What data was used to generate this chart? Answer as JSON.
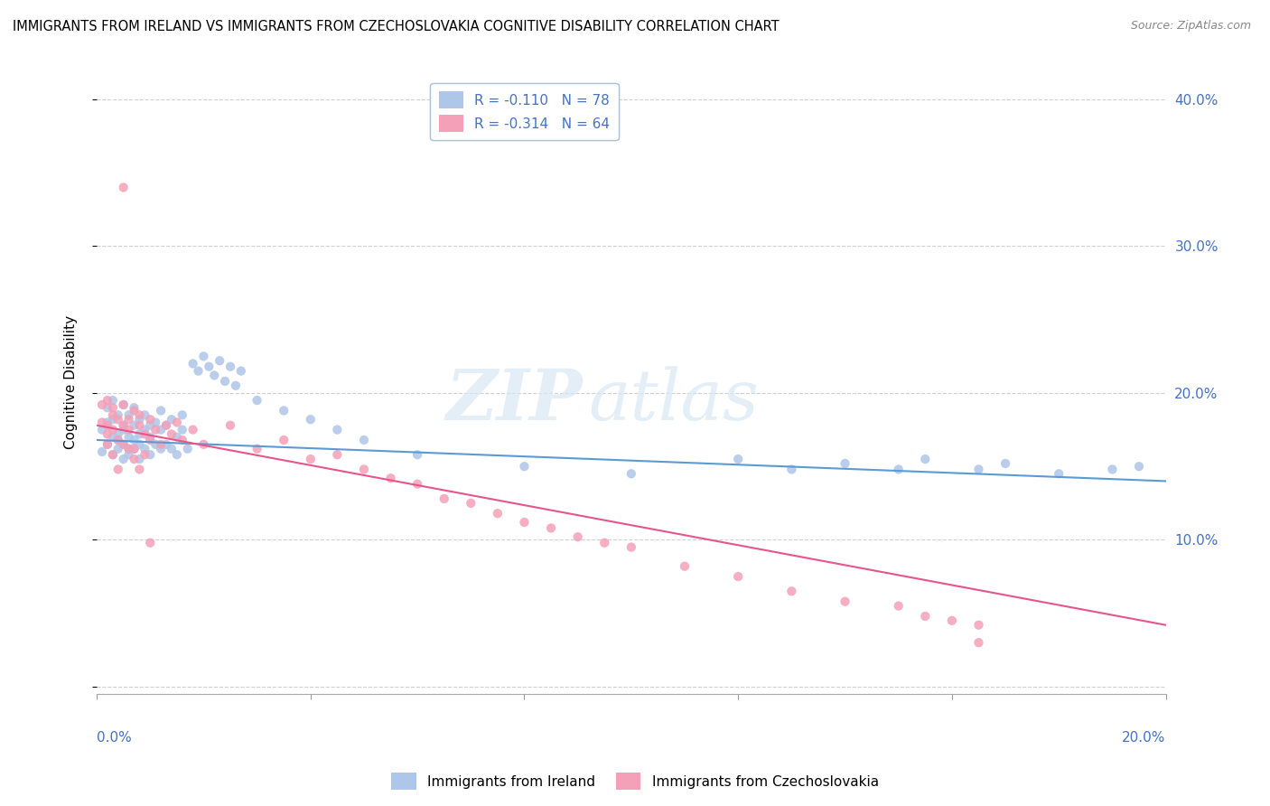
{
  "title": "IMMIGRANTS FROM IRELAND VS IMMIGRANTS FROM CZECHOSLOVAKIA COGNITIVE DISABILITY CORRELATION CHART",
  "source": "Source: ZipAtlas.com",
  "ylabel": "Cognitive Disability",
  "watermark_zip": "ZIP",
  "watermark_atlas": "atlas",
  "legend1_label": "R = -0.110   N = 78",
  "legend2_label": "R = -0.314   N = 64",
  "legend_bottom1": "Immigrants from Ireland",
  "legend_bottom2": "Immigrants from Czechoslovakia",
  "color_ireland": "#aec6e8",
  "color_czecho": "#f4a0b8",
  "color_ireland_line": "#5b9bd5",
  "color_czecho_line": "#e8558a",
  "color_axis_text": "#4472c4",
  "xlim": [
    0.0,
    0.2
  ],
  "ylim": [
    -0.005,
    0.42
  ],
  "ireland_scatter_x": [
    0.001,
    0.001,
    0.002,
    0.002,
    0.002,
    0.003,
    0.003,
    0.003,
    0.003,
    0.004,
    0.004,
    0.004,
    0.004,
    0.005,
    0.005,
    0.005,
    0.005,
    0.005,
    0.006,
    0.006,
    0.006,
    0.006,
    0.007,
    0.007,
    0.007,
    0.007,
    0.008,
    0.008,
    0.008,
    0.008,
    0.009,
    0.009,
    0.009,
    0.01,
    0.01,
    0.01,
    0.011,
    0.011,
    0.012,
    0.012,
    0.012,
    0.013,
    0.013,
    0.014,
    0.014,
    0.015,
    0.015,
    0.016,
    0.016,
    0.017,
    0.018,
    0.019,
    0.02,
    0.021,
    0.022,
    0.023,
    0.024,
    0.025,
    0.026,
    0.027,
    0.03,
    0.035,
    0.04,
    0.045,
    0.05,
    0.06,
    0.08,
    0.1,
    0.12,
    0.13,
    0.14,
    0.15,
    0.155,
    0.165,
    0.17,
    0.18,
    0.19,
    0.195
  ],
  "ireland_scatter_y": [
    0.175,
    0.16,
    0.19,
    0.165,
    0.18,
    0.17,
    0.158,
    0.182,
    0.195,
    0.162,
    0.172,
    0.185,
    0.168,
    0.178,
    0.155,
    0.192,
    0.165,
    0.175,
    0.162,
    0.17,
    0.185,
    0.158,
    0.168,
    0.178,
    0.162,
    0.19,
    0.155,
    0.172,
    0.182,
    0.165,
    0.175,
    0.162,
    0.185,
    0.17,
    0.158,
    0.178,
    0.165,
    0.18,
    0.162,
    0.175,
    0.188,
    0.165,
    0.178,
    0.162,
    0.182,
    0.17,
    0.158,
    0.175,
    0.185,
    0.162,
    0.22,
    0.215,
    0.225,
    0.218,
    0.212,
    0.222,
    0.208,
    0.218,
    0.205,
    0.215,
    0.195,
    0.188,
    0.182,
    0.175,
    0.168,
    0.158,
    0.15,
    0.145,
    0.155,
    0.148,
    0.152,
    0.148,
    0.155,
    0.148,
    0.152,
    0.145,
    0.148,
    0.15
  ],
  "czecho_scatter_x": [
    0.001,
    0.001,
    0.002,
    0.002,
    0.002,
    0.003,
    0.003,
    0.003,
    0.004,
    0.004,
    0.005,
    0.005,
    0.005,
    0.006,
    0.006,
    0.007,
    0.007,
    0.008,
    0.008,
    0.009,
    0.01,
    0.01,
    0.011,
    0.012,
    0.013,
    0.014,
    0.015,
    0.016,
    0.018,
    0.02,
    0.025,
    0.03,
    0.035,
    0.04,
    0.045,
    0.05,
    0.055,
    0.06,
    0.065,
    0.07,
    0.075,
    0.08,
    0.085,
    0.09,
    0.095,
    0.1,
    0.11,
    0.12,
    0.13,
    0.14,
    0.15,
    0.155,
    0.16,
    0.165,
    0.002,
    0.003,
    0.004,
    0.005,
    0.006,
    0.007,
    0.008,
    0.009,
    0.01,
    0.165
  ],
  "czecho_scatter_y": [
    0.18,
    0.192,
    0.178,
    0.195,
    0.172,
    0.185,
    0.175,
    0.19,
    0.182,
    0.168,
    0.178,
    0.192,
    0.165,
    0.182,
    0.175,
    0.188,
    0.162,
    0.178,
    0.185,
    0.172,
    0.168,
    0.182,
    0.175,
    0.165,
    0.178,
    0.172,
    0.18,
    0.168,
    0.175,
    0.165,
    0.178,
    0.162,
    0.168,
    0.155,
    0.158,
    0.148,
    0.142,
    0.138,
    0.128,
    0.125,
    0.118,
    0.112,
    0.108,
    0.102,
    0.098,
    0.095,
    0.082,
    0.075,
    0.065,
    0.058,
    0.055,
    0.048,
    0.045,
    0.042,
    0.165,
    0.158,
    0.148,
    0.34,
    0.162,
    0.155,
    0.148,
    0.158,
    0.098,
    0.03
  ],
  "ireland_trend_x": [
    0.0,
    0.2
  ],
  "ireland_trend_y": [
    0.168,
    0.14
  ],
  "czecho_trend_x": [
    0.0,
    0.2
  ],
  "czecho_trend_y": [
    0.178,
    0.042
  ],
  "yticks": [
    0.0,
    0.1,
    0.2,
    0.3,
    0.4
  ],
  "ytick_right_labels": [
    "",
    "10.0%",
    "20.0%",
    "30.0%",
    "40.0%"
  ],
  "xtick_positions": [
    0.0,
    0.04,
    0.08,
    0.12,
    0.16,
    0.2
  ],
  "background_color": "#ffffff",
  "grid_color": "#d0d0d0"
}
